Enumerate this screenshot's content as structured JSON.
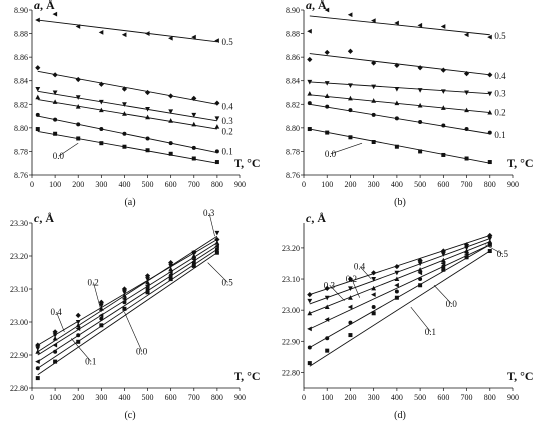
{
  "chart_data": [
    {
      "type": "scatter",
      "panel": "(a)",
      "ylabel": "a, Å",
      "xlabel": "T, °C",
      "xlim": [
        0,
        900
      ],
      "ylim": [
        8.76,
        8.9
      ],
      "xticks": [
        0,
        100,
        200,
        300,
        400,
        500,
        600,
        700,
        800,
        900
      ],
      "yticks": [
        "8.76",
        "8.78",
        "8.80",
        "8.82",
        "8.84",
        "8.86",
        "8.88",
        "8.90"
      ],
      "series": [
        {
          "name": "0.5",
          "marker": "tri-left",
          "x": [
            25,
            100,
            200,
            300,
            400,
            500,
            600,
            700,
            800
          ],
          "y": [
            8.8915,
            8.8965,
            8.886,
            8.881,
            8.879,
            8.88,
            8.876,
            8.877,
            8.874
          ],
          "fit": [
            [
              25,
              8.8915
            ],
            [
              800,
              8.873
            ]
          ],
          "label_pos": [
            820,
            8.873
          ]
        },
        {
          "name": "0.4",
          "marker": "diamond",
          "x": [
            25,
            100,
            200,
            300,
            400,
            500,
            600,
            700,
            800
          ],
          "y": [
            8.851,
            8.845,
            8.841,
            8.837,
            8.833,
            8.83,
            8.827,
            8.825,
            8.821
          ],
          "fit": [
            [
              25,
              8.848
            ],
            [
              800,
              8.82
            ]
          ],
          "label_pos": [
            820,
            8.818
          ]
        },
        {
          "name": "0.3",
          "marker": "tri-down",
          "x": [
            25,
            100,
            200,
            300,
            400,
            500,
            600,
            700,
            800
          ],
          "y": [
            8.833,
            8.83,
            8.826,
            8.822,
            8.82,
            8.816,
            8.814,
            8.811,
            8.808
          ],
          "fit": [
            [
              25,
              8.831
            ],
            [
              800,
              8.806
            ]
          ],
          "label_pos": [
            820,
            8.806
          ]
        },
        {
          "name": "0.2",
          "marker": "tri-up",
          "x": [
            25,
            100,
            200,
            300,
            400,
            500,
            600,
            700,
            800
          ],
          "y": [
            8.826,
            8.822,
            8.818,
            8.815,
            8.812,
            8.809,
            8.806,
            8.803,
            8.801
          ],
          "fit": [
            [
              25,
              8.824
            ],
            [
              800,
              8.799
            ]
          ],
          "label_pos": [
            820,
            8.797
          ]
        },
        {
          "name": "0.1",
          "marker": "circle",
          "x": [
            25,
            100,
            200,
            300,
            400,
            500,
            600,
            700,
            800
          ],
          "y": [
            8.811,
            8.807,
            8.803,
            8.799,
            8.795,
            8.791,
            8.787,
            8.783,
            8.78
          ],
          "fit": [
            [
              25,
              8.81
            ],
            [
              800,
              8.779
            ]
          ],
          "label_pos": [
            820,
            8.78
          ]
        },
        {
          "name": "0.0",
          "marker": "square",
          "x": [
            25,
            100,
            200,
            300,
            400,
            500,
            600,
            700,
            800
          ],
          "y": [
            8.799,
            8.795,
            8.791,
            8.787,
            8.784,
            8.781,
            8.778,
            8.774,
            8.771
          ],
          "fit": [
            [
              25,
              8.797
            ],
            [
              800,
              8.77
            ]
          ],
          "label_pos": [
            90,
            8.776
          ],
          "arrow_to": [
            200,
            8.787
          ]
        }
      ]
    },
    {
      "type": "scatter",
      "panel": "(b)",
      "ylabel": "a, Å",
      "xlabel": "T, °C",
      "xlim": [
        0,
        900
      ],
      "ylim": [
        8.76,
        8.9
      ],
      "xticks": [
        0,
        100,
        200,
        300,
        400,
        500,
        600,
        700,
        800,
        900
      ],
      "yticks": [
        "8.76",
        "8.78",
        "8.80",
        "8.82",
        "8.84",
        "8.86",
        "8.88",
        "8.90"
      ],
      "series": [
        {
          "name": "0.5",
          "marker": "tri-left",
          "x": [
            25,
            100,
            200,
            300,
            400,
            500,
            600,
            700,
            800
          ],
          "y": [
            8.882,
            8.9,
            8.896,
            8.891,
            8.889,
            8.887,
            8.886,
            8.879,
            8.877
          ],
          "fit": [
            [
              25,
              8.895
            ],
            [
              800,
              8.879
            ]
          ],
          "label_pos": [
            820,
            8.878
          ]
        },
        {
          "name": "0.4",
          "marker": "diamond",
          "x": [
            25,
            100,
            200,
            300,
            400,
            500,
            600,
            700,
            800
          ],
          "y": [
            8.858,
            8.864,
            8.865,
            8.855,
            8.853,
            8.851,
            8.849,
            8.846,
            8.845
          ],
          "fit": [
            [
              25,
              8.863
            ],
            [
              800,
              8.845
            ]
          ],
          "label_pos": [
            820,
            8.844
          ]
        },
        {
          "name": "0.3",
          "marker": "tri-down",
          "x": [
            25,
            100,
            200,
            300,
            400,
            500,
            600,
            700,
            800
          ],
          "y": [
            8.839,
            8.838,
            8.836,
            8.835,
            8.833,
            8.832,
            8.831,
            8.83,
            8.829
          ],
          "fit": [
            [
              25,
              8.839
            ],
            [
              800,
              8.829
            ]
          ],
          "label_pos": [
            820,
            8.829
          ]
        },
        {
          "name": "0.2",
          "marker": "tri-up",
          "x": [
            25,
            100,
            200,
            300,
            400,
            500,
            600,
            700,
            800
          ],
          "y": [
            8.829,
            8.827,
            8.825,
            8.823,
            8.821,
            8.819,
            8.817,
            8.815,
            8.813
          ],
          "fit": [
            [
              25,
              8.828
            ],
            [
              800,
              8.813
            ]
          ],
          "label_pos": [
            820,
            8.813
          ]
        },
        {
          "name": "0.1",
          "marker": "circle",
          "x": [
            25,
            100,
            200,
            300,
            400,
            500,
            600,
            700,
            800
          ],
          "y": [
            8.821,
            8.818,
            8.815,
            8.811,
            8.808,
            8.805,
            8.802,
            8.799,
            8.796
          ],
          "fit": [
            [
              25,
              8.82
            ],
            [
              800,
              8.795
            ]
          ],
          "label_pos": [
            820,
            8.794
          ]
        },
        {
          "name": "0.0",
          "marker": "square",
          "x": [
            25,
            100,
            200,
            300,
            400,
            500,
            600,
            700,
            800
          ],
          "y": [
            8.799,
            8.796,
            8.792,
            8.788,
            8.784,
            8.78,
            8.777,
            8.774,
            8.771
          ],
          "fit": [
            [
              25,
              8.799
            ],
            [
              800,
              8.77
            ]
          ],
          "label_pos": [
            90,
            8.778
          ],
          "arrow_to": [
            250,
            8.787
          ]
        }
      ]
    },
    {
      "type": "scatter",
      "panel": "(c)",
      "ylabel": "c, Å",
      "xlabel": "T, °C",
      "xlim": [
        0,
        900
      ],
      "ylim": [
        22.8,
        23.3
      ],
      "xticks": [
        0,
        100,
        200,
        300,
        400,
        500,
        600,
        700,
        800,
        900
      ],
      "yticks": [
        "22.80",
        "22.90",
        "23.00",
        "23.10",
        "23.20",
        "23.30"
      ],
      "series": [
        {
          "name": "0.3",
          "marker": "tri-down",
          "x": [
            25,
            100,
            200,
            300,
            400,
            500,
            600,
            700,
            800
          ],
          "y": [
            22.92,
            22.96,
            23.0,
            23.05,
            23.09,
            23.13,
            23.17,
            23.21,
            23.27
          ],
          "fit": [
            [
              25,
              22.91
            ],
            [
              800,
              23.26
            ]
          ],
          "label_pos": [
            740,
            23.33
          ],
          "arrow_to": [
            790,
            23.26
          ]
        },
        {
          "name": "0.4",
          "marker": "diamond",
          "x": [
            25,
            100,
            200,
            300,
            400,
            500,
            600,
            700,
            800
          ],
          "y": [
            22.93,
            22.97,
            23.02,
            23.06,
            23.1,
            23.14,
            23.18,
            23.21,
            23.25
          ],
          "fit": [
            [
              25,
              22.93
            ],
            [
              800,
              23.25
            ]
          ],
          "label_pos": [
            80,
            23.03
          ],
          "arrow_to": [
            140,
            22.97
          ]
        },
        {
          "name": "0.2",
          "marker": "tri-up",
          "x": [
            25,
            100,
            200,
            300,
            400,
            500,
            600,
            700,
            800
          ],
          "y": [
            22.91,
            22.95,
            22.99,
            23.04,
            23.08,
            23.12,
            23.16,
            23.2,
            23.24
          ],
          "fit": [
            [
              25,
              22.9
            ],
            [
              800,
              23.24
            ]
          ],
          "label_pos": [
            240,
            23.12
          ],
          "arrow_to": [
            300,
            23.03
          ]
        },
        {
          "name": "0.5",
          "marker": "tri-left",
          "x": [
            25,
            100,
            200,
            300,
            400,
            500,
            600,
            700,
            800
          ],
          "y": [
            22.88,
            22.93,
            22.98,
            23.02,
            23.07,
            23.11,
            23.15,
            23.19,
            23.23
          ],
          "fit": [
            [
              25,
              22.88
            ],
            [
              800,
              23.23
            ]
          ],
          "label_pos": [
            820,
            23.12
          ],
          "arrow_to": [
            760,
            23.18
          ]
        },
        {
          "name": "0.1",
          "marker": "circle",
          "x": [
            25,
            100,
            200,
            300,
            400,
            500,
            600,
            700,
            800
          ],
          "y": [
            22.86,
            22.91,
            22.96,
            23.01,
            23.06,
            23.1,
            23.14,
            23.18,
            23.22
          ],
          "fit": [
            [
              25,
              22.86
            ],
            [
              800,
              23.22
            ]
          ],
          "label_pos": [
            230,
            22.88
          ],
          "arrow_to": [
            170,
            22.95
          ]
        },
        {
          "name": "0.0",
          "marker": "square",
          "x": [
            25,
            100,
            200,
            300,
            400,
            500,
            600,
            700,
            800
          ],
          "y": [
            22.83,
            22.88,
            22.94,
            22.99,
            23.04,
            23.09,
            23.13,
            23.17,
            23.21
          ],
          "fit": [
            [
              25,
              22.84
            ],
            [
              800,
              23.21
            ]
          ],
          "label_pos": [
            450,
            22.91
          ],
          "arrow_to": [
            400,
            23.03
          ]
        }
      ]
    },
    {
      "type": "scatter",
      "panel": "(d)",
      "ylabel": "c, Å",
      "xlabel": "T, °C",
      "xlim": [
        0,
        900
      ],
      "ylim": [
        22.75,
        23.28
      ],
      "xticks": [
        0,
        100,
        200,
        300,
        400,
        500,
        600,
        700,
        800,
        900
      ],
      "yticks": [
        "22.80",
        "22.90",
        "23.00",
        "23.10",
        "23.20"
      ],
      "series": [
        {
          "name": "0.4",
          "marker": "diamond",
          "x": [
            25,
            100,
            200,
            300,
            400,
            500,
            600,
            700,
            800
          ],
          "y": [
            23.05,
            23.07,
            23.1,
            23.12,
            23.14,
            23.16,
            23.19,
            23.21,
            23.24
          ],
          "fit": [
            [
              25,
              23.05
            ],
            [
              800,
              23.24
            ]
          ],
          "label_pos": [
            215,
            23.14
          ],
          "arrow_to": [
            290,
            23.1
          ]
        },
        {
          "name": "0.3",
          "marker": "tri-down",
          "x": [
            25,
            100,
            200,
            300,
            400,
            500,
            600,
            700,
            800
          ],
          "y": [
            23.03,
            23.04,
            23.07,
            23.1,
            23.12,
            23.15,
            23.18,
            23.2,
            23.23
          ],
          "fit": [
            [
              25,
              23.02
            ],
            [
              800,
              23.23
            ]
          ],
          "label_pos": [
            85,
            23.08
          ],
          "arrow_to": [
            175,
            23.03
          ]
        },
        {
          "name": "0.2",
          "marker": "tri-up",
          "x": [
            25,
            100,
            200,
            300,
            400,
            500,
            600,
            700,
            800
          ],
          "y": [
            22.99,
            23.01,
            23.04,
            23.07,
            23.1,
            23.13,
            23.16,
            23.19,
            23.22
          ],
          "fit": [
            [
              25,
              22.99
            ],
            [
              800,
              23.22
            ]
          ],
          "label_pos": [
            180,
            23.1
          ],
          "arrow_to": [
            240,
            23.04
          ]
        },
        {
          "name": "0.5",
          "marker": "tri-left",
          "x": [
            25,
            100,
            200,
            300,
            400,
            500,
            600,
            700,
            800
          ],
          "y": [
            22.94,
            22.97,
            23.01,
            23.05,
            23.08,
            23.12,
            23.15,
            23.18,
            23.21
          ],
          "fit": [
            [
              25,
              22.94
            ],
            [
              800,
              23.21
            ]
          ],
          "label_pos": [
            830,
            23.18
          ],
          "arrow_to": [
            780,
            23.21
          ]
        },
        {
          "name": "0.1",
          "marker": "circle",
          "x": [
            25,
            100,
            200,
            300,
            400,
            500,
            600,
            700,
            800
          ],
          "y": [
            22.88,
            22.91,
            22.96,
            23.01,
            23.06,
            23.1,
            23.14,
            23.17,
            23.21
          ],
          "fit": [
            [
              25,
              22.88
            ],
            [
              800,
              23.21
            ]
          ],
          "label_pos": [
            520,
            22.93
          ],
          "arrow_to": [
            460,
            23.01
          ]
        },
        {
          "name": "0.0",
          "marker": "square",
          "x": [
            25,
            100,
            200,
            300,
            400,
            500,
            600,
            700,
            800
          ],
          "y": [
            22.83,
            22.87,
            22.92,
            22.99,
            23.04,
            23.08,
            23.13,
            23.17,
            23.19
          ],
          "fit": [
            [
              25,
              22.82
            ],
            [
              800,
              23.19
            ]
          ],
          "label_pos": [
            610,
            23.02
          ],
          "arrow_to": [
            560,
            23.08
          ]
        }
      ]
    }
  ]
}
